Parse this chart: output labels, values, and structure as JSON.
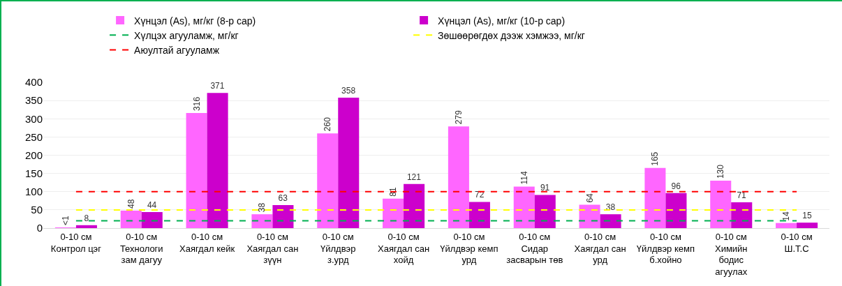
{
  "chart_data": {
    "type": "bar",
    "categories": [
      "0-10 см\nКонтрол цэг",
      "0-10 см\nТехнологи\nзам дагуу",
      "0-10 см\nХаягдал кейк",
      "0-10 см\nХаягдал сан\nзүүн",
      "0-10 см\nҮйлдвэр\nз.урд",
      "0-10 см\nХаягдал сан\nхойд",
      "0-10 см\nҮйлдвэр кемп\nурд",
      "0-10 см\nСидар\nзасварын төв",
      "0-10 см\nХаягдал сан\nурд",
      "0-10 см\nҮйлдвэр кемп\nб.хойно",
      "0-10 см\nХимийн\nбодис\nагуулах",
      "0-10 см\nШ.Т.С"
    ],
    "series": [
      {
        "name": "Хүнцэл (As), мг/кг (8-р сар)",
        "color": "#ff66ff",
        "values": [
          0.9,
          48,
          316,
          38,
          260,
          81,
          279,
          114,
          64,
          165,
          130,
          14
        ],
        "value_labels": [
          "<1",
          "48",
          "316",
          "38",
          "260",
          "81",
          "279",
          "114",
          "64",
          "165",
          "130",
          "14"
        ]
      },
      {
        "name": "Хүнцэл (As), мг/кг (10-р сар)",
        "color": "#cc00cc",
        "values": [
          8,
          44,
          371,
          63,
          358,
          121,
          72,
          91,
          38,
          96,
          71,
          15
        ],
        "value_labels": [
          "8",
          "44",
          "371",
          "63",
          "358",
          "121",
          "72",
          "91",
          "38",
          "96",
          "71",
          "15"
        ]
      }
    ],
    "ref_lines": [
      {
        "axis": "y",
        "value": 20,
        "label": "Хүлцэх агууламж, мг/кг",
        "color": "#00b050",
        "line_style": "dashed"
      },
      {
        "axis": "y",
        "value": 50,
        "label": "Зөшөөрөгдөх дээж хэмжээ, мг/кг",
        "color": "#ffff00",
        "line_style": "dashed"
      },
      {
        "axis": "y",
        "value": 100,
        "label": "Аюултай агууламж",
        "color": "#ff0000",
        "line_style": "dashed"
      }
    ],
    "ylim": [
      0,
      400
    ],
    "yticks": [
      0,
      50,
      100,
      150,
      200,
      250,
      300,
      350,
      400
    ],
    "grid": "y",
    "legend": "top"
  }
}
